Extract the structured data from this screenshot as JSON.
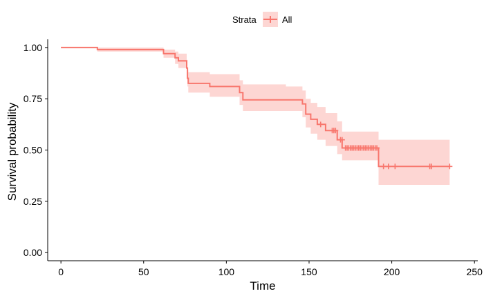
{
  "chart_data": {
    "type": "line",
    "chart_kind": "kaplan-meier survival curve",
    "xlabel": "Time",
    "ylabel": "Survival probability",
    "xlim": [
      -8,
      252
    ],
    "ylim": [
      -0.04,
      1.04
    ],
    "x_ticks": [
      0,
      50,
      100,
      150,
      200,
      250
    ],
    "y_ticks": [
      0.0,
      0.25,
      0.5,
      0.75,
      1.0
    ],
    "y_tick_labels": [
      "0.00",
      "0.25",
      "0.50",
      "0.75",
      "1.00"
    ],
    "grid": false,
    "legend": {
      "position": "top",
      "title": "Strata",
      "entries": [
        "All"
      ]
    },
    "series": [
      {
        "name": "All",
        "color": "#F8766D",
        "band_color": "#F8766D",
        "steps": [
          {
            "x": 0,
            "y": 1.0,
            "lower": 1.0,
            "upper": 1.0
          },
          {
            "x": 22,
            "y": 0.99,
            "lower": 0.98,
            "upper": 1.0
          },
          {
            "x": 62,
            "y": 0.97,
            "lower": 0.95,
            "upper": 0.99
          },
          {
            "x": 69,
            "y": 0.95,
            "lower": 0.92,
            "upper": 0.98
          },
          {
            "x": 71,
            "y": 0.935,
            "lower": 0.9,
            "upper": 0.97
          },
          {
            "x": 76,
            "y": 0.9,
            "lower": 0.86,
            "upper": 0.94
          },
          {
            "x": 76.5,
            "y": 0.85,
            "lower": 0.81,
            "upper": 0.89
          },
          {
            "x": 77,
            "y": 0.825,
            "lower": 0.78,
            "upper": 0.88
          },
          {
            "x": 90,
            "y": 0.81,
            "lower": 0.76,
            "upper": 0.87
          },
          {
            "x": 108,
            "y": 0.78,
            "lower": 0.72,
            "upper": 0.84
          },
          {
            "x": 110,
            "y": 0.745,
            "lower": 0.69,
            "upper": 0.82
          },
          {
            "x": 136,
            "y": 0.745,
            "lower": 0.69,
            "upper": 0.81
          },
          {
            "x": 146,
            "y": 0.725,
            "lower": 0.66,
            "upper": 0.79
          },
          {
            "x": 148,
            "y": 0.675,
            "lower": 0.61,
            "upper": 0.75
          },
          {
            "x": 151,
            "y": 0.65,
            "lower": 0.58,
            "upper": 0.73
          },
          {
            "x": 155,
            "y": 0.625,
            "lower": 0.55,
            "upper": 0.71
          },
          {
            "x": 160,
            "y": 0.595,
            "lower": 0.52,
            "upper": 0.68
          },
          {
            "x": 167,
            "y": 0.55,
            "lower": 0.48,
            "upper": 0.64
          },
          {
            "x": 170,
            "y": 0.51,
            "lower": 0.45,
            "upper": 0.59
          },
          {
            "x": 192,
            "y": 0.42,
            "lower": 0.33,
            "upper": 0.55
          },
          {
            "x": 235,
            "y": 0.42,
            "lower": 0.33,
            "upper": 0.55
          }
        ],
        "censored": [
          {
            "x": 157,
            "y": 0.625
          },
          {
            "x": 164,
            "y": 0.595
          },
          {
            "x": 165,
            "y": 0.595
          },
          {
            "x": 166,
            "y": 0.595
          },
          {
            "x": 169,
            "y": 0.55
          },
          {
            "x": 170,
            "y": 0.55
          },
          {
            "x": 172,
            "y": 0.51
          },
          {
            "x": 173,
            "y": 0.51
          },
          {
            "x": 174,
            "y": 0.51
          },
          {
            "x": 175,
            "y": 0.51
          },
          {
            "x": 176,
            "y": 0.51
          },
          {
            "x": 177,
            "y": 0.51
          },
          {
            "x": 178,
            "y": 0.51
          },
          {
            "x": 179,
            "y": 0.51
          },
          {
            "x": 180,
            "y": 0.51
          },
          {
            "x": 181,
            "y": 0.51
          },
          {
            "x": 182,
            "y": 0.51
          },
          {
            "x": 183,
            "y": 0.51
          },
          {
            "x": 184,
            "y": 0.51
          },
          {
            "x": 185,
            "y": 0.51
          },
          {
            "x": 186,
            "y": 0.51
          },
          {
            "x": 187,
            "y": 0.51
          },
          {
            "x": 188,
            "y": 0.51
          },
          {
            "x": 189,
            "y": 0.51
          },
          {
            "x": 190,
            "y": 0.51
          },
          {
            "x": 191,
            "y": 0.51
          },
          {
            "x": 195,
            "y": 0.42
          },
          {
            "x": 198,
            "y": 0.42
          },
          {
            "x": 202,
            "y": 0.42
          },
          {
            "x": 223,
            "y": 0.42
          },
          {
            "x": 224,
            "y": 0.42
          },
          {
            "x": 235,
            "y": 0.42
          }
        ]
      }
    ]
  }
}
